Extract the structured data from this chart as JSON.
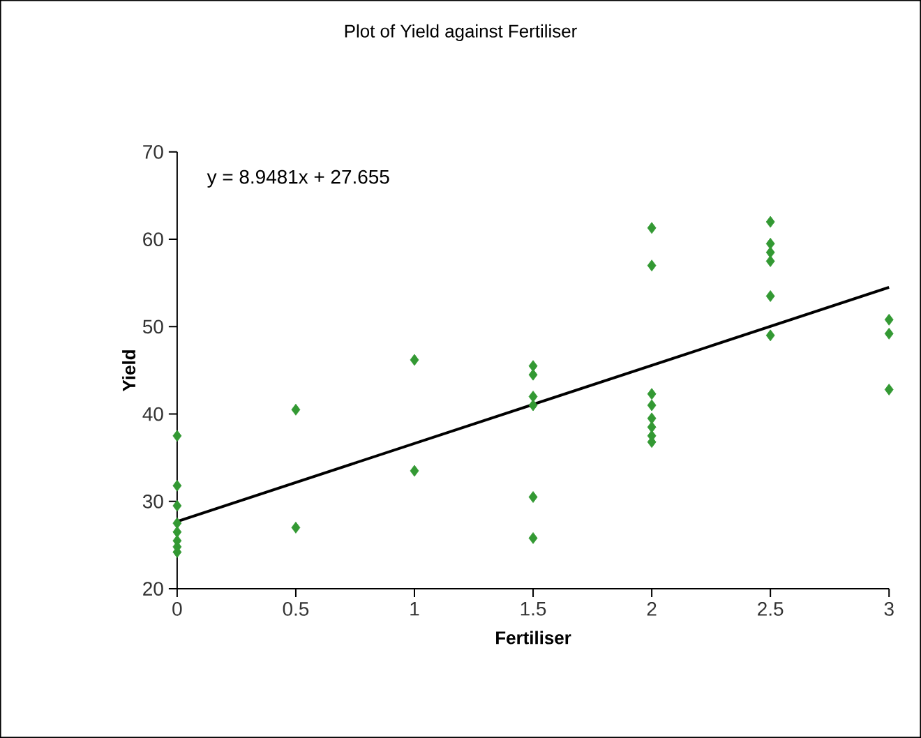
{
  "chart_data": {
    "type": "scatter",
    "title": "Plot of Yield against Fertiliser",
    "xlabel": "Fertiliser",
    "ylabel": "Yield",
    "xlim": [
      0,
      3
    ],
    "ylim": [
      20,
      70
    ],
    "xticks": [
      0,
      0.5,
      1,
      1.5,
      2,
      2.5,
      3
    ],
    "yticks": [
      20,
      30,
      40,
      50,
      60,
      70
    ],
    "grid": false,
    "annotations": [
      "y = 8.9481x + 27.655"
    ],
    "series": [
      {
        "marker": "diamond",
        "color": "#339933",
        "x": [
          0,
          0,
          0,
          0,
          0,
          0,
          0,
          0,
          0.5,
          0.5,
          1,
          1,
          1.5,
          1.5,
          1.5,
          1.5,
          1.5,
          1.5,
          2,
          2,
          2,
          2,
          2,
          2,
          2,
          2,
          2.5,
          2.5,
          2.5,
          2.5,
          2.5,
          2.5,
          3,
          3,
          3
        ],
        "values": [
          37.5,
          31.8,
          29.5,
          27.5,
          26.5,
          25.5,
          24.8,
          24.2,
          40.5,
          27,
          46.2,
          33.5,
          45.5,
          44.5,
          42,
          41,
          30.5,
          25.8,
          61.3,
          57,
          42.3,
          41,
          39.5,
          38.5,
          37.5,
          36.8,
          62,
          59.5,
          58.5,
          57.5,
          53.5,
          49,
          50.8,
          49.2,
          42.8
        ]
      },
      {
        "type": "line",
        "marker": "none",
        "color": "#000000",
        "x": [
          0,
          3
        ],
        "values": [
          27.7,
          54.5
        ]
      }
    ]
  }
}
